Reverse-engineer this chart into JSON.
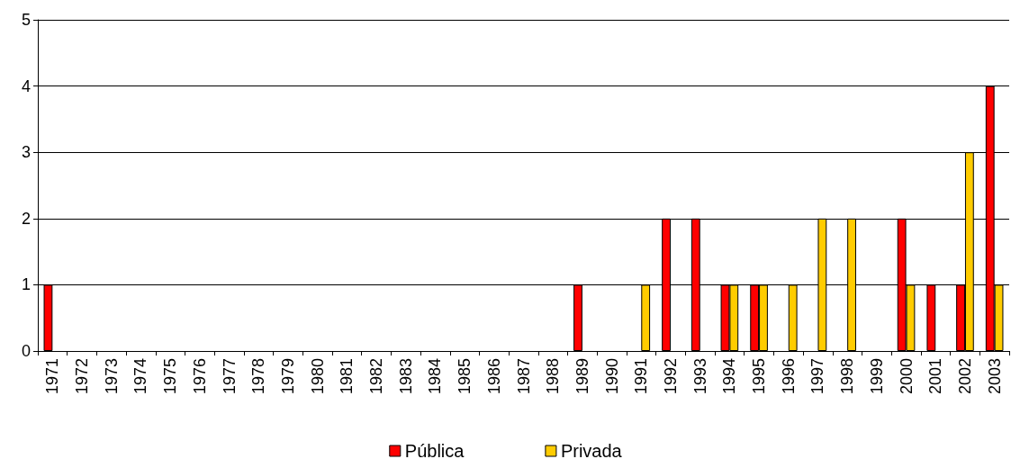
{
  "chart_data": {
    "type": "bar",
    "categories": [
      "1971",
      "1972",
      "1973",
      "1974",
      "1975",
      "1976",
      "1977",
      "1978",
      "1979",
      "1980",
      "1981",
      "1982",
      "1983",
      "1984",
      "1985",
      "1986",
      "1987",
      "1988",
      "1989",
      "1990",
      "1991",
      "1992",
      "1993",
      "1994",
      "1995",
      "1996",
      "1997",
      "1998",
      "1999",
      "2000",
      "2001",
      "2002",
      "2003"
    ],
    "series": [
      {
        "name": "Pública",
        "color": "#ff0000",
        "values": [
          1,
          0,
          0,
          0,
          0,
          0,
          0,
          0,
          0,
          0,
          0,
          0,
          0,
          0,
          0,
          0,
          0,
          0,
          1,
          0,
          0,
          2,
          2,
          1,
          1,
          0,
          0,
          0,
          0,
          2,
          1,
          1,
          4
        ]
      },
      {
        "name": "Privada",
        "color": "#ffcc00",
        "values": [
          0,
          0,
          0,
          0,
          0,
          0,
          0,
          0,
          0,
          0,
          0,
          0,
          0,
          0,
          0,
          0,
          0,
          0,
          0,
          0,
          1,
          0,
          0,
          1,
          1,
          1,
          2,
          2,
          0,
          1,
          0,
          3,
          1
        ]
      }
    ],
    "ylim": [
      0,
      5
    ],
    "yticks": [
      0,
      1,
      2,
      3,
      4,
      5
    ],
    "grid": "y",
    "legend": "bottom"
  }
}
